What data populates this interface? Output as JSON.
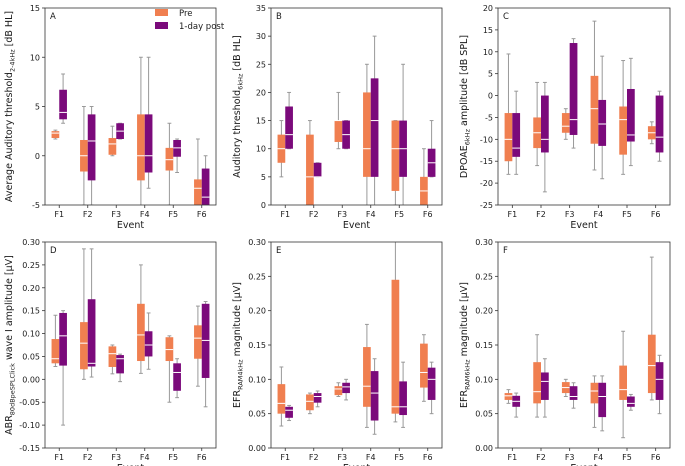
{
  "legend": {
    "pre": "Pre",
    "post": "1-day post"
  },
  "colors": {
    "pre": "#F07F50",
    "post": "#7B0A7B",
    "whisker": "#999999",
    "median": "#ffffff",
    "axis": "#333333"
  },
  "chart_data": [
    {
      "type": "box",
      "letter": "A",
      "ylabel": "Average Auditory threshold",
      "ylabel_sub": "2-4kHz",
      "ylabel_unit": " [dB HL]",
      "xlabel": "Event",
      "categories": [
        "F1",
        "F2",
        "F3",
        "F4",
        "F5",
        "F6"
      ],
      "ylim": [
        -5,
        15
      ],
      "yticks": [
        -5,
        0,
        5,
        10,
        15
      ],
      "pre": [
        [
          1.7,
          1.8,
          2.3,
          2.5,
          2.6
        ],
        [
          -5,
          -1.6,
          0,
          1.6,
          5
        ],
        [
          0,
          0.1,
          1.2,
          1.8,
          3
        ],
        [
          -6.7,
          -2.5,
          0,
          4.2,
          10
        ],
        [
          -5,
          -1.5,
          -0.4,
          0.8,
          3.3
        ],
        [
          -6.7,
          -5.2,
          -3.3,
          -2.4,
          1.7
        ]
      ],
      "post": [
        [
          3.3,
          3.7,
          4.4,
          6.7,
          8.3
        ],
        [
          -5,
          -2.5,
          1.5,
          4.2,
          5
        ],
        [
          1.7,
          1.7,
          2.5,
          3.3,
          3.3
        ],
        [
          -3.3,
          -1.7,
          0,
          4.2,
          10
        ],
        [
          -1.7,
          -0.1,
          0.8,
          1.6,
          1.7
        ],
        [
          -6.7,
          -5.3,
          -4.2,
          -1.3,
          0
        ]
      ]
    },
    {
      "type": "box",
      "letter": "B",
      "ylabel": "Auditory threshold",
      "ylabel_sub": "6kHz",
      "ylabel_unit": " [dB HL]",
      "xlabel": "Event",
      "categories": [
        "F1",
        "F2",
        "F3",
        "F4",
        "F5",
        "F6"
      ],
      "ylim": [
        0,
        35
      ],
      "yticks": [
        0,
        5,
        10,
        15,
        20,
        25,
        30,
        35
      ],
      "pre": [
        [
          5,
          7.5,
          10,
          12.5,
          15
        ],
        [
          0,
          0,
          5,
          12.5,
          15
        ],
        [
          10,
          11.2,
          15,
          15,
          20
        ],
        [
          -5,
          5,
          10,
          20,
          25
        ],
        [
          0,
          2.5,
          10,
          15,
          15
        ],
        [
          -5,
          0,
          2.5,
          5,
          10
        ]
      ],
      "post": [
        [
          10,
          10,
          12.5,
          17.5,
          20
        ],
        [
          5,
          5,
          5,
          7.5,
          7.5
        ],
        [
          10,
          10,
          12.5,
          15,
          15
        ],
        [
          -5,
          5,
          15,
          22.5,
          30
        ],
        [
          -5,
          5,
          10,
          15,
          25
        ],
        [
          5,
          5,
          7.5,
          10,
          15
        ]
      ]
    },
    {
      "type": "box",
      "letter": "C",
      "ylabel": "DPOAE",
      "ylabel_sub": "6kHz",
      "ylabel_unit": " amplitude [dB SPL]",
      "xlabel": "Event",
      "categories": [
        "F1",
        "F2",
        "F3",
        "F4",
        "F5",
        "F6"
      ],
      "ylim": [
        -25,
        20
      ],
      "yticks": [
        -25,
        -20,
        -15,
        -10,
        -5,
        0,
        5,
        10,
        15,
        20
      ],
      "pre": [
        [
          -18,
          -15,
          -10,
          -4,
          9.5
        ],
        [
          -16,
          -12,
          -8.5,
          -5,
          3
        ],
        [
          -10,
          -8.5,
          -7,
          -4,
          -3
        ],
        [
          -17,
          -11,
          -3,
          4.5,
          17
        ],
        [
          -18,
          -13.5,
          -5.5,
          -2.5,
          8
        ],
        [
          -11,
          -10,
          -8.5,
          -7,
          -6
        ]
      ],
      "post": [
        [
          -18,
          -14,
          -12,
          -4,
          1
        ],
        [
          -22,
          -13,
          -10,
          0,
          3
        ],
        [
          -12,
          -9,
          -5.5,
          12,
          13
        ],
        [
          -19,
          -11.5,
          -6.5,
          -1,
          9
        ],
        [
          -16,
          -10.5,
          -9,
          1.5,
          8.5
        ],
        [
          -15,
          -13,
          -9.5,
          0,
          1
        ]
      ]
    },
    {
      "type": "box",
      "letter": "D",
      "ylabel": "ABR",
      "ylabel_sub": "80dBpeSPLClick",
      "ylabel_unit": " wave I amplitude [µV]",
      "xlabel": "Event",
      "categories": [
        "F1",
        "F2",
        "F3",
        "F4",
        "F5",
        "F6"
      ],
      "ylim": [
        -0.15,
        0.3
      ],
      "yticks": [
        -0.15,
        -0.1,
        -0.05,
        0.0,
        0.05,
        0.1,
        0.15,
        0.2,
        0.25,
        0.3
      ],
      "pre": [
        [
          0.028,
          0.035,
          0.045,
          0.088,
          0.14
        ],
        [
          0,
          0.022,
          0.079,
          0.125,
          0.285
        ],
        [
          0.012,
          0.027,
          0.056,
          0.072,
          0.075
        ],
        [
          0.013,
          0.04,
          0.097,
          0.165,
          0.25
        ],
        [
          -0.05,
          0.04,
          0.065,
          0.092,
          0.095
        ],
        [
          -0.015,
          0.045,
          0.09,
          0.118,
          0.16
        ]
      ],
      "post": [
        [
          -0.1,
          0.03,
          0.095,
          0.145,
          0.15
        ],
        [
          0.005,
          0.028,
          0.035,
          0.175,
          0.285
        ],
        [
          -0.005,
          0.013,
          0.045,
          0.053,
          0.055
        ],
        [
          0.022,
          0.05,
          0.075,
          0.105,
          0.145
        ],
        [
          -0.04,
          -0.025,
          0.015,
          0.035,
          0.045
        ],
        [
          -0.06,
          0.003,
          0.085,
          0.165,
          0.17
        ]
      ]
    },
    {
      "type": "box",
      "letter": "E",
      "ylabel": "EFR",
      "ylabel_sub": "RAM4kHz",
      "ylabel_unit": " magnitude [µV]",
      "xlabel": "Event",
      "categories": [
        "F1",
        "F2",
        "F3",
        "F4",
        "F5",
        "F6"
      ],
      "ylim": [
        0,
        0.3
      ],
      "yticks": [
        0.0,
        0.05,
        0.1,
        0.15,
        0.2,
        0.25,
        0.3
      ],
      "pre": [
        [
          0.032,
          0.05,
          0.065,
          0.093,
          0.118
        ],
        [
          0.05,
          0.055,
          0.068,
          0.078,
          0.08
        ],
        [
          0.075,
          0.077,
          0.086,
          0.09,
          0.095
        ],
        [
          0.03,
          0.06,
          0.09,
          0.147,
          0.18
        ],
        [
          0.038,
          0.05,
          0.06,
          0.245,
          0.31
        ],
        [
          0.068,
          0.088,
          0.11,
          0.152,
          0.165
        ]
      ],
      "post": [
        [
          0.04,
          0.044,
          0.055,
          0.06,
          0.062
        ],
        [
          0.06,
          0.066,
          0.075,
          0.08,
          0.083
        ],
        [
          0.07,
          0.08,
          0.089,
          0.095,
          0.1
        ],
        [
          0.02,
          0.04,
          0.08,
          0.112,
          0.13
        ],
        [
          0.03,
          0.048,
          0.06,
          0.097,
          0.125
        ],
        [
          0.05,
          0.07,
          0.1,
          0.117,
          0.125
        ]
      ]
    },
    {
      "type": "box",
      "letter": "F",
      "ylabel": "EFR",
      "ylabel_sub": "RAM6kHz",
      "ylabel_unit": " magnitude [µV]",
      "xlabel": "Event",
      "categories": [
        "F1",
        "F2",
        "F3",
        "F4",
        "F5",
        "F6"
      ],
      "ylim": [
        0,
        0.3
      ],
      "yticks": [
        0.0,
        0.05,
        0.1,
        0.15,
        0.2,
        0.25,
        0.3
      ],
      "pre": [
        [
          0.065,
          0.07,
          0.076,
          0.08,
          0.085
        ],
        [
          0.045,
          0.065,
          0.082,
          0.125,
          0.165
        ],
        [
          0.075,
          0.08,
          0.088,
          0.096,
          0.1
        ],
        [
          0.03,
          0.065,
          0.083,
          0.095,
          0.105
        ],
        [
          0.015,
          0.07,
          0.085,
          0.12,
          0.17
        ],
        [
          0.07,
          0.08,
          0.12,
          0.165,
          0.278
        ]
      ],
      "post": [
        [
          0.045,
          0.06,
          0.068,
          0.076,
          0.08
        ],
        [
          0.045,
          0.07,
          0.097,
          0.11,
          0.13
        ],
        [
          0.058,
          0.07,
          0.075,
          0.09,
          0.095
        ],
        [
          0.025,
          0.045,
          0.075,
          0.095,
          0.105
        ],
        [
          0.055,
          0.06,
          0.065,
          0.075,
          0.078
        ],
        [
          0.05,
          0.07,
          0.1,
          0.125,
          0.135
        ]
      ]
    }
  ]
}
